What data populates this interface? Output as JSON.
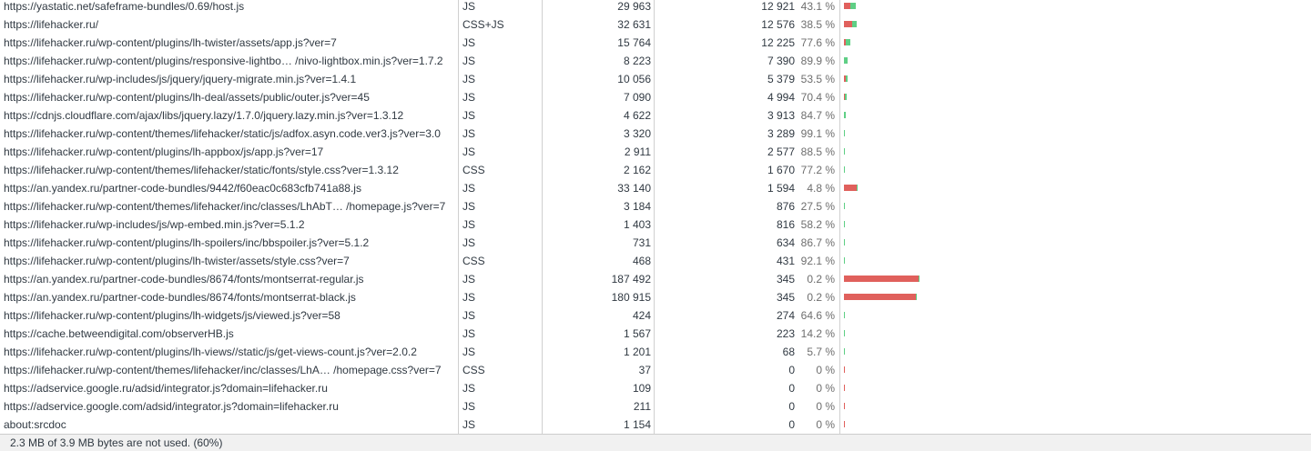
{
  "rows": [
    {
      "url": "https://yastatic.net/safeframe-bundles/0.69/host.js",
      "type": "JS",
      "total": "29 963",
      "unused": "12 921",
      "pct": "43.1 %",
      "total_bytes": 29963,
      "unused_bytes": 12921
    },
    {
      "url": "https://lifehacker.ru/",
      "type": "CSS+JS",
      "total": "32 631",
      "unused": "12 576",
      "pct": "38.5 %",
      "total_bytes": 32631,
      "unused_bytes": 12576
    },
    {
      "url": "https://lifehacker.ru/wp-content/plugins/lh-twister/assets/app.js?ver=7",
      "type": "JS",
      "total": "15 764",
      "unused": "12 225",
      "pct": "77.6 %",
      "total_bytes": 15764,
      "unused_bytes": 12225
    },
    {
      "url": "https://lifehacker.ru/wp-content/plugins/responsive-lightbo… /nivo-lightbox.min.js?ver=1.7.2",
      "type": "JS",
      "total": "8 223",
      "unused": "7 390",
      "pct": "89.9 %",
      "total_bytes": 8223,
      "unused_bytes": 7390
    },
    {
      "url": "https://lifehacker.ru/wp-includes/js/jquery/jquery-migrate.min.js?ver=1.4.1",
      "type": "JS",
      "total": "10 056",
      "unused": "5 379",
      "pct": "53.5 %",
      "total_bytes": 10056,
      "unused_bytes": 5379
    },
    {
      "url": "https://lifehacker.ru/wp-content/plugins/lh-deal/assets/public/outer.js?ver=45",
      "type": "JS",
      "total": "7 090",
      "unused": "4 994",
      "pct": "70.4 %",
      "total_bytes": 7090,
      "unused_bytes": 4994
    },
    {
      "url": "https://cdnjs.cloudflare.com/ajax/libs/jquery.lazy/1.7.0/jquery.lazy.min.js?ver=1.3.12",
      "type": "JS",
      "total": "4 622",
      "unused": "3 913",
      "pct": "84.7 %",
      "total_bytes": 4622,
      "unused_bytes": 3913
    },
    {
      "url": "https://lifehacker.ru/wp-content/themes/lifehacker/static/js/adfox.asyn.code.ver3.js?ver=3.0",
      "type": "JS",
      "total": "3 320",
      "unused": "3 289",
      "pct": "99.1 %",
      "total_bytes": 3320,
      "unused_bytes": 3289
    },
    {
      "url": "https://lifehacker.ru/wp-content/plugins/lh-appbox/js/app.js?ver=17",
      "type": "JS",
      "total": "2 911",
      "unused": "2 577",
      "pct": "88.5 %",
      "total_bytes": 2911,
      "unused_bytes": 2577
    },
    {
      "url": "https://lifehacker.ru/wp-content/themes/lifehacker/static/fonts/style.css?ver=1.3.12",
      "type": "CSS",
      "total": "2 162",
      "unused": "1 670",
      "pct": "77.2 %",
      "total_bytes": 2162,
      "unused_bytes": 1670
    },
    {
      "url": "https://an.yandex.ru/partner-code-bundles/9442/f60eac0c683cfb741a88.js",
      "type": "JS",
      "total": "33 140",
      "unused": "1 594",
      "pct": "4.8 %",
      "total_bytes": 33140,
      "unused_bytes": 1594
    },
    {
      "url": "https://lifehacker.ru/wp-content/themes/lifehacker/inc/classes/LhAbT… /homepage.js?ver=7",
      "type": "JS",
      "total": "3 184",
      "unused": "876",
      "pct": "27.5 %",
      "total_bytes": 3184,
      "unused_bytes": 876
    },
    {
      "url": "https://lifehacker.ru/wp-includes/js/wp-embed.min.js?ver=5.1.2",
      "type": "JS",
      "total": "1 403",
      "unused": "816",
      "pct": "58.2 %",
      "total_bytes": 1403,
      "unused_bytes": 816
    },
    {
      "url": "https://lifehacker.ru/wp-content/plugins/lh-spoilers/inc/bbspoiler.js?ver=5.1.2",
      "type": "JS",
      "total": "731",
      "unused": "634",
      "pct": "86.7 %",
      "total_bytes": 731,
      "unused_bytes": 634
    },
    {
      "url": "https://lifehacker.ru/wp-content/plugins/lh-twister/assets/style.css?ver=7",
      "type": "CSS",
      "total": "468",
      "unused": "431",
      "pct": "92.1 %",
      "total_bytes": 468,
      "unused_bytes": 431
    },
    {
      "url": "https://an.yandex.ru/partner-code-bundles/8674/fonts/montserrat-regular.js",
      "type": "JS",
      "total": "187 492",
      "unused": "345",
      "pct": "0.2 %",
      "total_bytes": 187492,
      "unused_bytes": 345
    },
    {
      "url": "https://an.yandex.ru/partner-code-bundles/8674/fonts/montserrat-black.js",
      "type": "JS",
      "total": "180 915",
      "unused": "345",
      "pct": "0.2 %",
      "total_bytes": 180915,
      "unused_bytes": 345
    },
    {
      "url": "https://lifehacker.ru/wp-content/plugins/lh-widgets/js/viewed.js?ver=58",
      "type": "JS",
      "total": "424",
      "unused": "274",
      "pct": "64.6 %",
      "total_bytes": 424,
      "unused_bytes": 274
    },
    {
      "url": "https://cache.betweendigital.com/observerHB.js",
      "type": "JS",
      "total": "1 567",
      "unused": "223",
      "pct": "14.2 %",
      "total_bytes": 1567,
      "unused_bytes": 223
    },
    {
      "url": "https://lifehacker.ru/wp-content/plugins/lh-views//static/js/get-views-count.js?ver=2.0.2",
      "type": "JS",
      "total": "1 201",
      "unused": "68",
      "pct": "5.7 %",
      "total_bytes": 1201,
      "unused_bytes": 68
    },
    {
      "url": "https://lifehacker.ru/wp-content/themes/lifehacker/inc/classes/LhA… /homepage.css?ver=7",
      "type": "CSS",
      "total": "37",
      "unused": "0",
      "pct": "0 %",
      "total_bytes": 37,
      "unused_bytes": 0
    },
    {
      "url": "https://adservice.google.ru/adsid/integrator.js?domain=lifehacker.ru",
      "type": "JS",
      "total": "109",
      "unused": "0",
      "pct": "0 %",
      "total_bytes": 109,
      "unused_bytes": 0
    },
    {
      "url": "https://adservice.google.com/adsid/integrator.js?domain=lifehacker.ru",
      "type": "JS",
      "total": "211",
      "unused": "0",
      "pct": "0 %",
      "total_bytes": 211,
      "unused_bytes": 0
    },
    {
      "url": "about:srcdoc",
      "type": "JS",
      "total": "1 154",
      "unused": "0",
      "pct": "0 %",
      "total_bytes": 1154,
      "unused_bytes": 0
    }
  ],
  "status": {
    "text": "2.3 MB of 3.9 MB bytes are not used. (60%)"
  },
  "colors": {
    "used": "#e0605c",
    "unused": "#5fcf85",
    "grid": "#d0d0d0"
  }
}
